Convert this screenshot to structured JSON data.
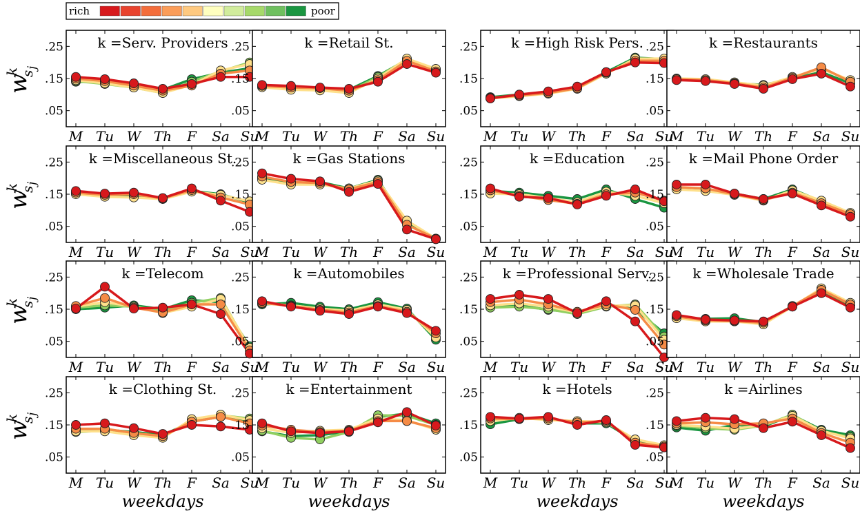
{
  "legend": {
    "left_label": "rich",
    "right_label": "poor",
    "colors": [
      "#d7191c",
      "#e8432e",
      "#f36d3b",
      "#fb9d59",
      "#fec980",
      "#ffffbf",
      "#d1ec9c",
      "#a6d96a",
      "#6fc05f",
      "#1a9641"
    ]
  },
  "y_axis_label": {
    "base": "w",
    "sup": "k",
    "sub": "s",
    "subsub": "j"
  },
  "x_axis_label": "weekdays",
  "chart_data": [
    {
      "type": "line",
      "title": "k =Serv. Providers",
      "categories": [
        "M",
        "Tu",
        "W",
        "Th",
        "F",
        "Sa",
        "Su"
      ],
      "yticks": [
        ".05",
        ".15",
        ".25"
      ],
      "ylim": [
        0.0,
        0.3
      ],
      "series": [
        {
          "values": [
            0.155,
            0.148,
            0.135,
            0.118,
            0.133,
            0.155,
            0.155
          ]
        },
        {
          "values": [
            0.15,
            0.142,
            0.128,
            0.112,
            0.128,
            0.165,
            0.175
          ]
        },
        {
          "values": [
            0.145,
            0.135,
            0.122,
            0.105,
            0.13,
            0.175,
            0.195
          ]
        },
        {
          "values": [
            0.142,
            0.133,
            0.122,
            0.105,
            0.14,
            0.172,
            0.2
          ]
        },
        {
          "values": [
            0.14,
            0.14,
            0.125,
            0.115,
            0.148,
            0.168,
            0.182
          ]
        }
      ]
    },
    {
      "type": "line",
      "title": "k =Retail St.",
      "categories": [
        "M",
        "Tu",
        "W",
        "Th",
        "F",
        "Sa",
        "Su"
      ],
      "yticks": [
        ".05",
        ".15",
        ".25"
      ],
      "ylim": [
        0.0,
        0.3
      ],
      "series": [
        {
          "values": [
            0.13,
            0.127,
            0.122,
            0.118,
            0.14,
            0.195,
            0.168
          ]
        },
        {
          "values": [
            0.127,
            0.122,
            0.12,
            0.112,
            0.145,
            0.205,
            0.172
          ]
        },
        {
          "values": [
            0.123,
            0.115,
            0.113,
            0.105,
            0.15,
            0.212,
            0.18
          ]
        },
        {
          "values": [
            0.125,
            0.118,
            0.117,
            0.11,
            0.155,
            0.21,
            0.178
          ]
        },
        {
          "values": [
            0.128,
            0.12,
            0.12,
            0.115,
            0.158,
            0.208,
            0.175
          ]
        }
      ]
    },
    {
      "type": "line",
      "title": "k =High Risk Pers.",
      "categories": [
        "M",
        "Tu",
        "W",
        "Th",
        "F",
        "Sa",
        "Su"
      ],
      "yticks": [
        ".05",
        ".15",
        ".25"
      ],
      "ylim": [
        0.0,
        0.3
      ],
      "series": [
        {
          "values": [
            0.088,
            0.1,
            0.11,
            0.125,
            0.17,
            0.2,
            0.198
          ]
        },
        {
          "values": [
            0.09,
            0.097,
            0.105,
            0.12,
            0.168,
            0.205,
            0.205
          ]
        },
        {
          "values": [
            0.088,
            0.095,
            0.103,
            0.118,
            0.165,
            0.212,
            0.212
          ]
        },
        {
          "values": [
            0.092,
            0.1,
            0.108,
            0.122,
            0.17,
            0.215,
            0.21
          ]
        }
      ]
    },
    {
      "type": "line",
      "title": "k =Restaurants",
      "categories": [
        "M",
        "Tu",
        "W",
        "Th",
        "F",
        "Sa",
        "Su"
      ],
      "yticks": [
        ".05",
        ".15",
        ".25"
      ],
      "ylim": [
        0.0,
        0.3
      ],
      "series": [
        {
          "values": [
            0.145,
            0.142,
            0.133,
            0.118,
            0.148,
            0.165,
            0.125
          ]
        },
        {
          "values": [
            0.148,
            0.145,
            0.135,
            0.122,
            0.152,
            0.185,
            0.14
          ]
        },
        {
          "values": [
            0.15,
            0.148,
            0.138,
            0.128,
            0.155,
            0.18,
            0.145
          ]
        },
        {
          "values": [
            0.148,
            0.145,
            0.135,
            0.13,
            0.15,
            0.17,
            0.135
          ]
        }
      ]
    },
    {
      "type": "line",
      "title": "k =Miscellaneous St.",
      "categories": [
        "M",
        "Tu",
        "W",
        "Th",
        "F",
        "Sa",
        "Su"
      ],
      "yticks": [
        ".05",
        ".15",
        ".25"
      ],
      "ylim": [
        0.0,
        0.3
      ],
      "series": [
        {
          "values": [
            0.16,
            0.152,
            0.155,
            0.138,
            0.168,
            0.13,
            0.095
          ]
        },
        {
          "values": [
            0.155,
            0.148,
            0.15,
            0.137,
            0.163,
            0.14,
            0.118
          ]
        },
        {
          "values": [
            0.15,
            0.142,
            0.14,
            0.135,
            0.158,
            0.148,
            0.128
          ]
        },
        {
          "values": [
            0.152,
            0.145,
            0.145,
            0.137,
            0.16,
            0.15,
            0.125
          ]
        }
      ]
    },
    {
      "type": "line",
      "title": "k =Gas Stations",
      "categories": [
        "M",
        "Tu",
        "W",
        "Th",
        "F",
        "Sa",
        "Su"
      ],
      "yticks": [
        ".05",
        ".15",
        ".25"
      ],
      "ylim": [
        0.0,
        0.3
      ],
      "series": [
        {
          "values": [
            0.215,
            0.198,
            0.19,
            0.157,
            0.182,
            0.04,
            0.01
          ]
        },
        {
          "values": [
            0.205,
            0.188,
            0.185,
            0.165,
            0.188,
            0.055,
            0.012
          ]
        },
        {
          "values": [
            0.195,
            0.18,
            0.18,
            0.168,
            0.192,
            0.068,
            0.012
          ]
        },
        {
          "values": [
            0.2,
            0.185,
            0.188,
            0.168,
            0.195,
            0.06,
            0.01
          ]
        }
      ]
    },
    {
      "type": "line",
      "title": "k =Education",
      "categories": [
        "M",
        "Tu",
        "W",
        "Th",
        "F",
        "Sa",
        "Su"
      ],
      "yticks": [
        ".05",
        ".15",
        ".25"
      ],
      "ylim": [
        0.0,
        0.3
      ],
      "series": [
        {
          "values": [
            0.168,
            0.142,
            0.138,
            0.118,
            0.145,
            0.165,
            0.128
          ]
        },
        {
          "values": [
            0.162,
            0.145,
            0.132,
            0.12,
            0.15,
            0.155,
            0.13
          ]
        },
        {
          "values": [
            0.152,
            0.15,
            0.138,
            0.125,
            0.158,
            0.145,
            0.122
          ]
        },
        {
          "values": [
            0.16,
            0.155,
            0.145,
            0.135,
            0.165,
            0.135,
            0.108
          ]
        }
      ]
    },
    {
      "type": "line",
      "title": "k =Mail Phone Order",
      "categories": [
        "M",
        "Tu",
        "W",
        "Th",
        "F",
        "Sa",
        "Su"
      ],
      "yticks": [
        ".05",
        ".15",
        ".25"
      ],
      "ylim": [
        0.0,
        0.3
      ],
      "series": [
        {
          "values": [
            0.18,
            0.18,
            0.152,
            0.135,
            0.152,
            0.115,
            0.08
          ]
        },
        {
          "values": [
            0.172,
            0.168,
            0.15,
            0.132,
            0.155,
            0.122,
            0.088
          ]
        },
        {
          "values": [
            0.165,
            0.16,
            0.148,
            0.13,
            0.162,
            0.13,
            0.092
          ]
        },
        {
          "values": [
            0.168,
            0.162,
            0.152,
            0.135,
            0.165,
            0.128,
            0.09
          ]
        }
      ]
    },
    {
      "type": "line",
      "title": "k =Telecom",
      "categories": [
        "M",
        "Tu",
        "W",
        "Th",
        "F",
        "Sa",
        "Su"
      ],
      "yticks": [
        ".05",
        ".15",
        ".25"
      ],
      "ylim": [
        0.0,
        0.3
      ],
      "series": [
        {
          "values": [
            0.152,
            0.22,
            0.152,
            0.155,
            0.165,
            0.135,
            0.012
          ]
        },
        {
          "values": [
            0.16,
            0.185,
            0.155,
            0.14,
            0.165,
            0.165,
            0.022
          ]
        },
        {
          "values": [
            0.158,
            0.172,
            0.158,
            0.138,
            0.158,
            0.182,
            0.03
          ]
        },
        {
          "values": [
            0.155,
            0.162,
            0.158,
            0.145,
            0.17,
            0.185,
            0.028
          ]
        },
        {
          "values": [
            0.15,
            0.155,
            0.162,
            0.15,
            0.178,
            0.172,
            0.035
          ]
        }
      ]
    },
    {
      "type": "line",
      "title": "k =Automobiles",
      "categories": [
        "M",
        "Tu",
        "W",
        "Th",
        "F",
        "Sa",
        "Su"
      ],
      "yticks": [
        ".05",
        ".15",
        ".25"
      ],
      "ylim": [
        0.0,
        0.3
      ],
      "series": [
        {
          "values": [
            0.175,
            0.158,
            0.145,
            0.135,
            0.158,
            0.138,
            0.083
          ]
        },
        {
          "values": [
            0.17,
            0.16,
            0.148,
            0.14,
            0.16,
            0.142,
            0.075
          ]
        },
        {
          "values": [
            0.168,
            0.162,
            0.152,
            0.145,
            0.165,
            0.148,
            0.062
          ]
        },
        {
          "values": [
            0.165,
            0.17,
            0.158,
            0.15,
            0.172,
            0.152,
            0.055
          ]
        }
      ]
    },
    {
      "type": "line",
      "title": "k =Professional Serv.",
      "categories": [
        "M",
        "Tu",
        "W",
        "Th",
        "F",
        "Sa",
        "Su"
      ],
      "yticks": [
        ".05",
        ".15",
        ".25"
      ],
      "ylim": [
        0.0,
        0.3
      ],
      "series": [
        {
          "values": [
            0.182,
            0.195,
            0.182,
            0.138,
            0.175,
            0.112,
            0.0
          ]
        },
        {
          "values": [
            0.172,
            0.18,
            0.165,
            0.142,
            0.165,
            0.148,
            0.04
          ]
        },
        {
          "values": [
            0.162,
            0.168,
            0.158,
            0.14,
            0.16,
            0.162,
            0.055
          ]
        },
        {
          "values": [
            0.155,
            0.158,
            0.15,
            0.135,
            0.158,
            0.165,
            0.065
          ]
        },
        {
          "values": [
            0.16,
            0.162,
            0.148,
            0.14,
            0.165,
            0.15,
            0.075
          ]
        }
      ]
    },
    {
      "type": "line",
      "title": "k =Wholesale Trade",
      "categories": [
        "M",
        "Tu",
        "W",
        "Th",
        "F",
        "Sa",
        "Su"
      ],
      "yticks": [
        ".05",
        ".15",
        ".25"
      ],
      "ylim": [
        0.0,
        0.3
      ],
      "series": [
        {
          "values": [
            0.132,
            0.118,
            0.115,
            0.112,
            0.158,
            0.2,
            0.155
          ]
        },
        {
          "values": [
            0.128,
            0.115,
            0.113,
            0.108,
            0.16,
            0.21,
            0.165
          ]
        },
        {
          "values": [
            0.122,
            0.112,
            0.112,
            0.103,
            0.158,
            0.215,
            0.17
          ]
        },
        {
          "values": [
            0.125,
            0.12,
            0.122,
            0.11,
            0.16,
            0.205,
            0.162
          ]
        }
      ]
    },
    {
      "type": "line",
      "title": "k =Clothing St.",
      "categories": [
        "M",
        "Tu",
        "W",
        "Th",
        "F",
        "Sa",
        "Su"
      ],
      "yticks": [
        ".05",
        ".15",
        ".25"
      ],
      "ylim": [
        0.0,
        0.3
      ],
      "series": [
        {
          "values": [
            0.15,
            0.155,
            0.14,
            0.122,
            0.15,
            0.145,
            0.135
          ]
        },
        {
          "values": [
            0.138,
            0.138,
            0.125,
            0.115,
            0.16,
            0.175,
            0.155
          ]
        },
        {
          "values": [
            0.13,
            0.13,
            0.118,
            0.11,
            0.168,
            0.182,
            0.165
          ]
        },
        {
          "values": [
            0.128,
            0.132,
            0.12,
            0.112,
            0.165,
            0.18,
            0.17
          ]
        },
        {
          "values": [
            0.13,
            0.135,
            0.128,
            0.118,
            0.16,
            0.175,
            0.16
          ]
        }
      ]
    },
    {
      "type": "line",
      "title": "k =Entertainment",
      "categories": [
        "M",
        "Tu",
        "W",
        "Th",
        "F",
        "Sa",
        "Su"
      ],
      "yticks": [
        ".05",
        ".15",
        ".25"
      ],
      "ylim": [
        0.0,
        0.3
      ],
      "series": [
        {
          "values": [
            0.155,
            0.13,
            0.125,
            0.13,
            0.158,
            0.19,
            0.148
          ]
        },
        {
          "values": [
            0.148,
            0.135,
            0.128,
            0.132,
            0.162,
            0.162,
            0.14
          ]
        },
        {
          "values": [
            0.14,
            0.125,
            0.132,
            0.135,
            0.17,
            0.165,
            0.135
          ]
        },
        {
          "values": [
            0.132,
            0.11,
            0.105,
            0.128,
            0.18,
            0.178,
            0.15
          ]
        },
        {
          "values": [
            0.13,
            0.115,
            0.118,
            0.13,
            0.175,
            0.185,
            0.155
          ]
        }
      ]
    },
    {
      "type": "line",
      "title": "k =Hotels",
      "categories": [
        "M",
        "Tu",
        "W",
        "Th",
        "F",
        "Sa",
        "Su"
      ],
      "yticks": [
        ".05",
        ".15",
        ".25"
      ],
      "ylim": [
        0.0,
        0.3
      ],
      "series": [
        {
          "values": [
            0.175,
            0.17,
            0.175,
            0.15,
            0.165,
            0.088,
            0.08
          ]
        },
        {
          "values": [
            0.17,
            0.168,
            0.17,
            0.158,
            0.162,
            0.095,
            0.083
          ]
        },
        {
          "values": [
            0.162,
            0.172,
            0.165,
            0.162,
            0.158,
            0.105,
            0.087
          ]
        },
        {
          "values": [
            0.152,
            0.168,
            0.172,
            0.155,
            0.155,
            0.1,
            0.085
          ]
        }
      ]
    },
    {
      "type": "line",
      "title": "k =Airlines",
      "categories": [
        "M",
        "Tu",
        "W",
        "Th",
        "F",
        "Sa",
        "Su"
      ],
      "yticks": [
        ".05",
        ".15",
        ".25"
      ],
      "ylim": [
        0.0,
        0.3
      ],
      "series": [
        {
          "values": [
            0.162,
            0.172,
            0.168,
            0.14,
            0.16,
            0.118,
            0.078
          ]
        },
        {
          "values": [
            0.155,
            0.158,
            0.152,
            0.155,
            0.17,
            0.125,
            0.095
          ]
        },
        {
          "values": [
            0.15,
            0.145,
            0.138,
            0.15,
            0.178,
            0.132,
            0.108
          ]
        },
        {
          "values": [
            0.148,
            0.14,
            0.135,
            0.148,
            0.182,
            0.13,
            0.112
          ]
        },
        {
          "values": [
            0.142,
            0.132,
            0.15,
            0.145,
            0.18,
            0.135,
            0.118
          ]
        }
      ]
    }
  ]
}
